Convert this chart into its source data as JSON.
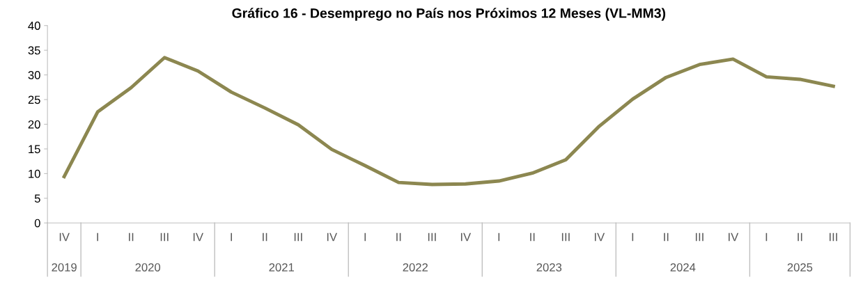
{
  "chart_data": {
    "type": "line",
    "title": "Gráfico 16 - Desemprego no País nos Próximos 12 Meses (VL-MM3)",
    "categories": [
      "IV",
      "I",
      "II",
      "III",
      "IV",
      "I",
      "II",
      "III",
      "IV",
      "I",
      "II",
      "III",
      "IV",
      "I",
      "II",
      "III",
      "IV",
      "I",
      "II",
      "III",
      "IV",
      "I",
      "II",
      "III"
    ],
    "series": [
      {
        "color": "#8c8750",
        "values": [
          9.4,
          22.5,
          27.4,
          33.5,
          30.8,
          26.5,
          23.3,
          19.9,
          14.9,
          11.6,
          8.2,
          7.8,
          7.9,
          8.5,
          10.1,
          12.8,
          19.6,
          25.1,
          29.5,
          32.1,
          33.2,
          29.6,
          29.1,
          27.7
        ]
      }
    ],
    "annotations": [
      "2019",
      "2020",
      "2021",
      "2022",
      "2023",
      "2024",
      "2025"
    ],
    "ylim": [
      0,
      40
    ],
    "yticks": [
      0,
      5,
      10,
      15,
      20,
      25,
      30,
      35,
      40
    ],
    "grid": false,
    "marker": "none",
    "line_style": "solid"
  }
}
